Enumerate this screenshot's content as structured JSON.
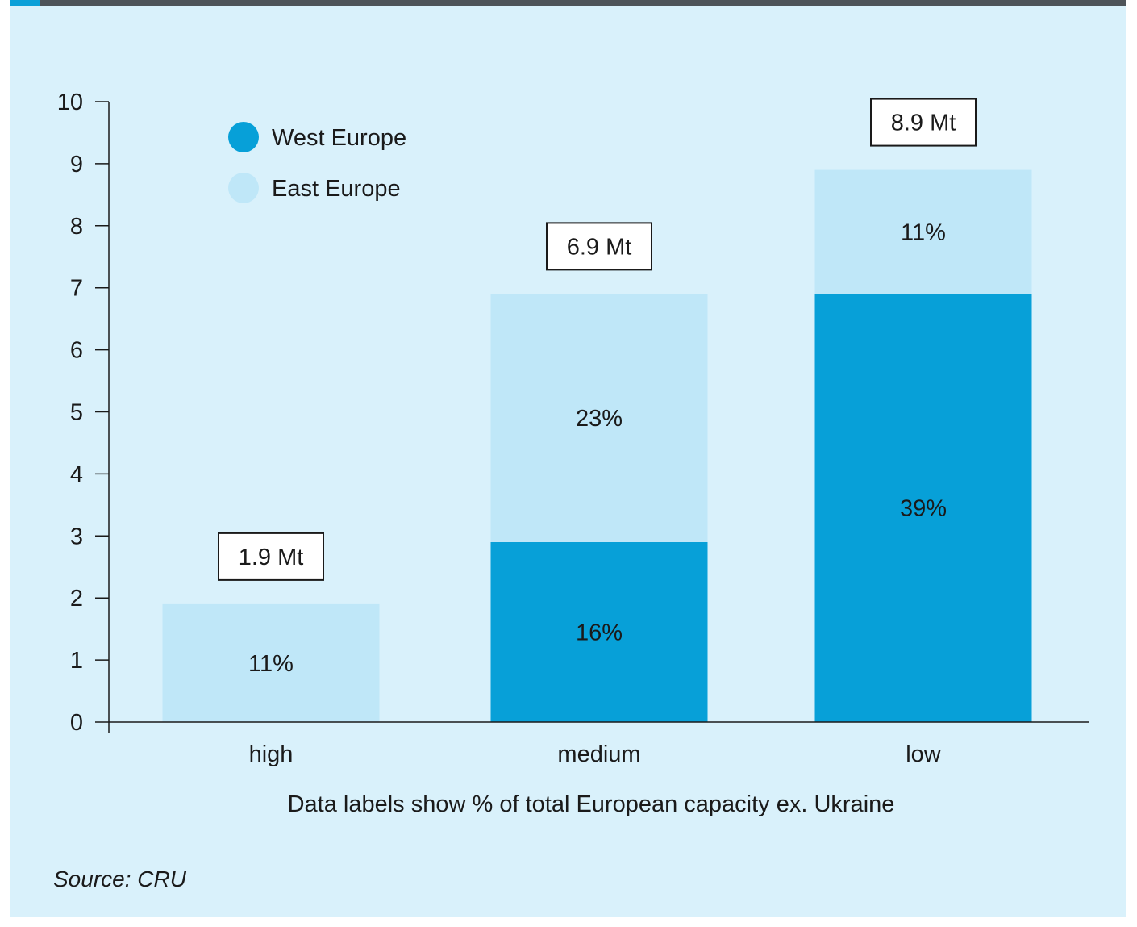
{
  "colors": {
    "background": "#d9f1fb",
    "top_bar": "#4e5459",
    "accent": "#0aa0d8",
    "west_europe": "#07a0d8",
    "east_europe": "#bfe7f8",
    "text": "#1a1a1a"
  },
  "chart_data": {
    "type": "bar",
    "stacked": true,
    "categories": [
      "high",
      "medium",
      "low"
    ],
    "series": [
      {
        "name": "West Europe",
        "values": [
          0,
          2.9,
          6.9
        ],
        "labels": [
          "",
          "16%",
          "39%"
        ]
      },
      {
        "name": "East Europe",
        "values": [
          1.9,
          4.0,
          2.0
        ],
        "labels": [
          "11%",
          "23%",
          "11%"
        ]
      }
    ],
    "totals": [
      "1.9 Mt",
      "6.9 Mt",
      "8.9 Mt"
    ],
    "ylim": [
      0,
      10
    ],
    "yticks": [
      "0",
      "1",
      "2",
      "3",
      "4",
      "5",
      "6",
      "7",
      "8",
      "9",
      "10"
    ],
    "xlabel": "Data labels show % of total European capacity ex. Ukraine",
    "ylabel": "",
    "legend": {
      "placement": "top-left",
      "entries": [
        "West Europe",
        "East Europe"
      ]
    },
    "grid": false
  },
  "source": "Source: CRU"
}
